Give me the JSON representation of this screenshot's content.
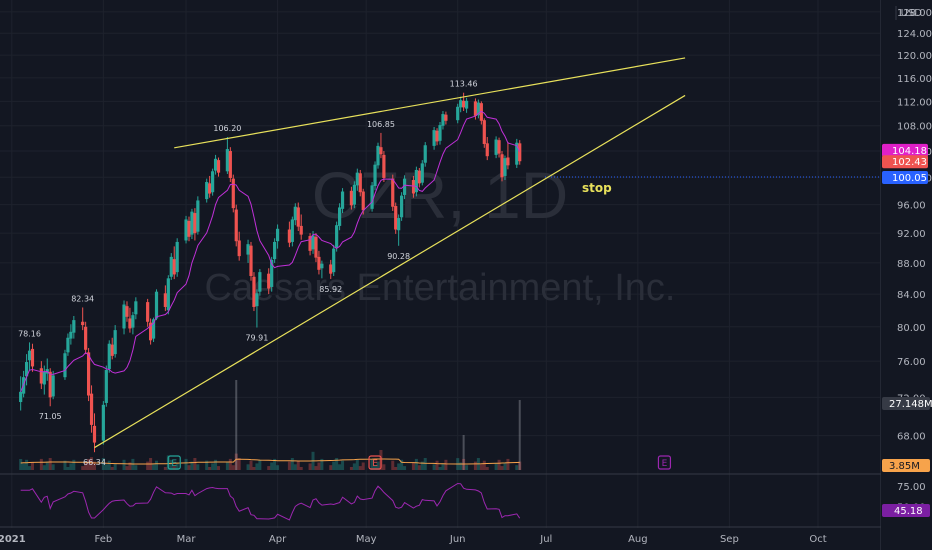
{
  "watermark": {
    "symbol": "CZR, 1D",
    "company": "Caesars Entertainment, Inc."
  },
  "currency": "USD",
  "colors": {
    "bg": "#131722",
    "up": "#26a69a",
    "down": "#ef5350",
    "trend": "#e8e15b",
    "ma": "#c030d8",
    "rsi": "#9c27b0",
    "stop": "#2962ff",
    "volume_ma": "#f7a34b"
  },
  "price_axis": {
    "ticks": [
      "128.00",
      "124.00",
      "120.00",
      "116.00",
      "112.00",
      "108.00",
      "104.00",
      "100.00",
      "96.00",
      "92.00",
      "88.00",
      "84.00",
      "80.00",
      "76.00",
      "72.00",
      "68.00"
    ]
  },
  "price_badges": [
    {
      "label": "104.18",
      "value": 104.18,
      "color": "#e020c8"
    },
    {
      "label": "102.43",
      "value": 102.43,
      "color": "#ef5350"
    },
    {
      "label": "100.05",
      "value": 100.05,
      "color": "#2962ff"
    }
  ],
  "volume_badges": [
    {
      "label": "27.148M",
      "color": "#363a45"
    },
    {
      "label": "3.85M",
      "color": "#f7a34b"
    }
  ],
  "rsi_axis": {
    "ticks": [
      "75.00",
      "50.00"
    ],
    "value_label": "45.18",
    "value": 45.18
  },
  "time_axis": {
    "labels": [
      "2021",
      "Feb",
      "Mar",
      "Apr",
      "May",
      "Jun",
      "Jul",
      "Aug",
      "Sep",
      "Oct"
    ]
  },
  "annotations": [
    {
      "text": "78.16",
      "price": 78.16,
      "date": "2021-01-07"
    },
    {
      "text": "71.05",
      "price": 71.05,
      "date": "2021-01-14"
    },
    {
      "text": "82.34",
      "price": 82.34,
      "date": "2021-01-25"
    },
    {
      "text": "66.34",
      "price": 66.34,
      "date": "2021-01-29"
    },
    {
      "text": "106.20",
      "price": 106.2,
      "date": "2021-03-15"
    },
    {
      "text": "79.91",
      "price": 79.91,
      "date": "2021-03-25"
    },
    {
      "text": "85.92",
      "price": 85.92,
      "date": "2021-04-19"
    },
    {
      "text": "106.85",
      "price": 106.85,
      "date": "2021-05-06"
    },
    {
      "text": "90.28",
      "price": 90.28,
      "date": "2021-05-12"
    },
    {
      "text": "113.46",
      "price": 113.46,
      "date": "2021-06-03"
    }
  ],
  "stop": {
    "label": "stop",
    "price": 100.05
  },
  "events": [
    {
      "letter": "E",
      "date": "2021-02-25",
      "color": "#26a69a"
    },
    {
      "letter": "E",
      "date": "2021-05-04",
      "color": "#ef5350"
    },
    {
      "letter": "E",
      "date": "2021-08-10",
      "color": "#9c27b0"
    }
  ],
  "chart_data": {
    "type": "candlestick",
    "symbol": "CZR",
    "interval": "1D",
    "currency": "USD",
    "trendlines": [
      {
        "from": {
          "date": "2021-02-25",
          "price": 104.5
        },
        "to": {
          "date": "2021-08-17",
          "price": 119.5
        }
      },
      {
        "from": {
          "date": "2021-01-29",
          "price": 66.8
        },
        "to": {
          "date": "2021-08-17",
          "price": 113.0
        }
      }
    ],
    "series": [
      {
        "type": "candlestick",
        "points": [
          [
            "2021-01-04",
            71.5,
            74.3,
            70.6,
            72.6
          ],
          [
            "2021-01-05",
            72.4,
            74.9,
            72.0,
            74.2
          ],
          [
            "2021-01-06",
            74.3,
            76.8,
            73.3,
            75.9
          ],
          [
            "2021-01-07",
            76.1,
            78.16,
            75.0,
            77.2
          ],
          [
            "2021-01-08",
            77.4,
            78.0,
            74.8,
            75.4
          ],
          [
            "2021-01-11",
            75.2,
            76.0,
            72.9,
            73.5
          ],
          [
            "2021-01-12",
            73.4,
            75.5,
            72.3,
            74.8
          ],
          [
            "2021-01-13",
            74.6,
            76.3,
            73.8,
            75.1
          ],
          [
            "2021-01-14",
            74.8,
            75.2,
            71.05,
            72.0
          ],
          [
            "2021-01-15",
            72.1,
            74.9,
            71.8,
            74.4
          ],
          [
            "2021-01-19",
            74.2,
            77.3,
            73.9,
            76.9
          ],
          [
            "2021-01-20",
            77.0,
            79.2,
            76.6,
            78.7
          ],
          [
            "2021-01-21",
            78.6,
            80.3,
            77.9,
            79.4
          ],
          [
            "2021-01-22",
            79.3,
            81.3,
            78.6,
            80.8
          ],
          [
            "2021-01-25",
            80.6,
            82.34,
            79.6,
            80.2
          ],
          [
            "2021-01-26",
            80.0,
            80.6,
            76.8,
            77.3
          ],
          [
            "2021-01-27",
            77.0,
            77.5,
            71.6,
            72.2
          ],
          [
            "2021-01-28",
            72.4,
            73.3,
            68.3,
            69.1
          ],
          [
            "2021-01-29",
            69.0,
            70.3,
            66.34,
            67.3
          ],
          [
            "2021-02-01",
            67.5,
            71.6,
            67.1,
            71.2
          ],
          [
            "2021-02-02",
            71.4,
            75.5,
            71.0,
            75.0
          ],
          [
            "2021-02-03",
            75.1,
            78.4,
            74.7,
            78.0
          ],
          [
            "2021-02-04",
            77.9,
            78.7,
            76.2,
            76.6
          ],
          [
            "2021-02-05",
            76.8,
            80.2,
            76.4,
            79.6
          ],
          [
            "2021-02-08",
            79.8,
            83.2,
            79.1,
            82.7
          ],
          [
            "2021-02-09",
            82.5,
            83.1,
            80.6,
            81.2
          ],
          [
            "2021-02-10",
            81.0,
            82.3,
            79.3,
            79.8
          ],
          [
            "2021-02-11",
            79.9,
            81.8,
            79.1,
            81.4
          ],
          [
            "2021-02-12",
            81.5,
            83.6,
            80.9,
            83.1
          ],
          [
            "2021-02-16",
            83.0,
            83.4,
            80.0,
            80.6
          ],
          [
            "2021-02-17",
            80.5,
            81.0,
            77.9,
            78.4
          ],
          [
            "2021-02-18",
            78.6,
            81.1,
            78.2,
            80.9
          ],
          [
            "2021-02-19",
            81.0,
            84.6,
            80.8,
            84.3
          ],
          [
            "2021-02-22",
            84.1,
            85.1,
            81.9,
            82.4
          ],
          [
            "2021-02-23",
            82.0,
            86.4,
            81.5,
            86.0
          ],
          [
            "2021-02-24",
            86.2,
            89.3,
            85.8,
            88.8
          ],
          [
            "2021-02-25",
            88.5,
            90.2,
            85.9,
            86.5
          ],
          [
            "2021-02-26",
            86.8,
            91.3,
            86.2,
            90.8
          ],
          [
            "2021-03-01",
            91.0,
            94.4,
            90.6,
            93.9
          ],
          [
            "2021-03-02",
            93.7,
            94.3,
            90.9,
            91.5
          ],
          [
            "2021-03-03",
            91.8,
            95.4,
            91.2,
            95.0
          ],
          [
            "2021-03-04",
            94.8,
            95.5,
            91.0,
            92.0
          ],
          [
            "2021-03-05",
            92.2,
            97.2,
            91.8,
            96.6
          ],
          [
            "2021-03-08",
            96.8,
            99.8,
            96.3,
            99.3
          ],
          [
            "2021-03-09",
            99.1,
            100.2,
            97.0,
            97.6
          ],
          [
            "2021-03-10",
            97.8,
            101.3,
            97.3,
            100.9
          ],
          [
            "2021-03-11",
            101.0,
            103.4,
            100.4,
            102.8
          ],
          [
            "2021-03-12",
            102.6,
            103.0,
            100.1,
            100.7
          ],
          [
            "2021-03-15",
            100.9,
            106.2,
            100.5,
            104.3
          ],
          [
            "2021-03-16",
            104.0,
            104.6,
            99.3,
            99.9
          ],
          [
            "2021-03-17",
            99.8,
            100.4,
            94.9,
            95.5
          ],
          [
            "2021-03-18",
            95.3,
            96.0,
            90.2,
            90.9
          ],
          [
            "2021-03-19",
            91.0,
            92.2,
            88.3,
            88.9
          ],
          [
            "2021-03-22",
            89.1,
            91.1,
            88.0,
            90.5
          ],
          [
            "2021-03-23",
            90.3,
            90.8,
            85.7,
            86.3
          ],
          [
            "2021-03-24",
            86.2,
            86.8,
            81.9,
            82.4
          ],
          [
            "2021-03-25",
            82.5,
            84.6,
            79.91,
            84.1
          ],
          [
            "2021-03-26",
            84.3,
            87.2,
            83.8,
            86.8
          ],
          [
            "2021-03-29",
            86.6,
            87.3,
            84.0,
            84.7
          ],
          [
            "2021-03-30",
            84.9,
            88.8,
            84.3,
            88.4
          ],
          [
            "2021-03-31",
            88.5,
            91.3,
            88.0,
            90.8
          ],
          [
            "2021-04-01",
            90.9,
            93.2,
            89.9,
            92.6
          ],
          [
            "2021-04-05",
            92.5,
            93.6,
            90.1,
            90.7
          ],
          [
            "2021-04-06",
            90.8,
            94.3,
            90.2,
            93.9
          ],
          [
            "2021-04-07",
            93.8,
            96.2,
            93.1,
            95.7
          ],
          [
            "2021-04-08",
            95.6,
            96.3,
            92.3,
            92.9
          ],
          [
            "2021-04-09",
            93.0,
            94.6,
            91.1,
            91.8
          ],
          [
            "2021-04-12",
            91.6,
            92.0,
            89.0,
            89.6
          ],
          [
            "2021-04-13",
            89.8,
            92.3,
            89.2,
            91.7
          ],
          [
            "2021-04-14",
            91.5,
            92.0,
            88.1,
            88.7
          ],
          [
            "2021-04-15",
            88.8,
            89.6,
            86.5,
            87.1
          ],
          [
            "2021-04-16",
            87.3,
            88.3,
            86.0,
            87.9
          ],
          [
            "2021-04-19",
            87.8,
            88.4,
            85.92,
            86.6
          ],
          [
            "2021-04-20",
            86.8,
            90.4,
            86.3,
            89.9
          ],
          [
            "2021-04-21",
            90.0,
            93.6,
            89.5,
            93.1
          ],
          [
            "2021-04-22",
            93.0,
            96.2,
            92.4,
            95.6
          ],
          [
            "2021-04-23",
            95.4,
            98.4,
            94.8,
            97.9
          ],
          [
            "2021-04-26",
            98.0,
            98.6,
            95.3,
            95.9
          ],
          [
            "2021-04-27",
            96.0,
            99.4,
            95.5,
            98.9
          ],
          [
            "2021-04-28",
            98.8,
            101.3,
            98.0,
            100.7
          ],
          [
            "2021-04-29",
            100.6,
            101.1,
            97.2,
            97.8
          ],
          [
            "2021-04-30",
            97.9,
            98.3,
            94.6,
            95.2
          ],
          [
            "2021-05-03",
            95.4,
            99.3,
            95.0,
            98.8
          ],
          [
            "2021-05-04",
            98.7,
            102.4,
            98.1,
            101.9
          ],
          [
            "2021-05-05",
            101.8,
            105.3,
            101.3,
            104.8
          ],
          [
            "2021-05-06",
            104.6,
            106.85,
            102.9,
            103.5
          ],
          [
            "2021-05-07",
            103.4,
            104.0,
            99.3,
            99.9
          ],
          [
            "2021-05-10",
            99.8,
            100.4,
            95.1,
            95.7
          ],
          [
            "2021-05-11",
            95.8,
            96.3,
            91.9,
            92.5
          ],
          [
            "2021-05-12",
            92.4,
            94.6,
            90.28,
            94.1
          ],
          [
            "2021-05-13",
            94.2,
            97.8,
            93.7,
            97.3
          ],
          [
            "2021-05-14",
            97.4,
            100.3,
            96.8,
            99.8
          ],
          [
            "2021-05-17",
            99.6,
            100.2,
            97.0,
            97.6
          ],
          [
            "2021-05-18",
            97.8,
            101.6,
            97.2,
            101.1
          ],
          [
            "2021-05-19",
            101.0,
            101.4,
            98.5,
            99.1
          ],
          [
            "2021-05-20",
            99.2,
            102.6,
            98.8,
            102.1
          ],
          [
            "2021-05-21",
            102.2,
            105.4,
            101.6,
            104.9
          ],
          [
            "2021-05-24",
            104.8,
            107.8,
            104.2,
            107.3
          ],
          [
            "2021-05-25",
            107.2,
            107.6,
            104.9,
            105.5
          ],
          [
            "2021-05-26",
            105.6,
            108.6,
            105.0,
            108.1
          ],
          [
            "2021-05-27",
            108.0,
            110.4,
            107.4,
            109.9
          ],
          [
            "2021-05-28",
            109.8,
            110.3,
            108.2,
            108.8
          ],
          [
            "2021-06-01",
            108.9,
            111.6,
            108.4,
            111.1
          ],
          [
            "2021-06-02",
            111.0,
            112.8,
            110.2,
            112.2
          ],
          [
            "2021-06-03",
            112.1,
            113.46,
            110.4,
            111.0
          ],
          [
            "2021-06-04",
            110.8,
            112.6,
            110.1,
            112.1
          ],
          [
            "2021-06-07",
            112.0,
            112.5,
            109.0,
            109.6
          ],
          [
            "2021-06-08",
            109.7,
            112.3,
            109.2,
            111.8
          ],
          [
            "2021-06-09",
            111.7,
            112.0,
            108.2,
            108.8
          ],
          [
            "2021-06-10",
            108.9,
            109.2,
            104.5,
            105.1
          ],
          [
            "2021-06-11",
            105.2,
            106.2,
            102.6,
            103.2
          ],
          [
            "2021-06-14",
            103.4,
            106.3,
            102.9,
            105.8
          ],
          [
            "2021-06-15",
            105.7,
            106.1,
            103.0,
            103.6
          ],
          [
            "2021-06-16",
            103.5,
            104.0,
            99.4,
            100.0
          ],
          [
            "2021-06-17",
            100.2,
            103.3,
            99.6,
            102.9
          ],
          [
            "2021-06-18",
            103.0,
            105.4,
            101.2,
            101.8
          ],
          [
            "2021-06-21",
            101.9,
            105.9,
            101.4,
            105.3
          ],
          [
            "2021-06-22",
            105.2,
            105.7,
            101.9,
            102.43
          ]
        ]
      }
    ],
    "moving_average": {
      "color": "#c030d8",
      "period": 10
    },
    "volume": {
      "last": "27.148M",
      "ma_last": "3.85M"
    },
    "rsi": {
      "last": 45.18,
      "ticks": [
        75,
        50
      ]
    },
    "price_range": [
      64.6,
      130.3
    ],
    "price_scale": "log",
    "x_range": [
      "2020-12-28",
      "2021-10-22"
    ]
  }
}
